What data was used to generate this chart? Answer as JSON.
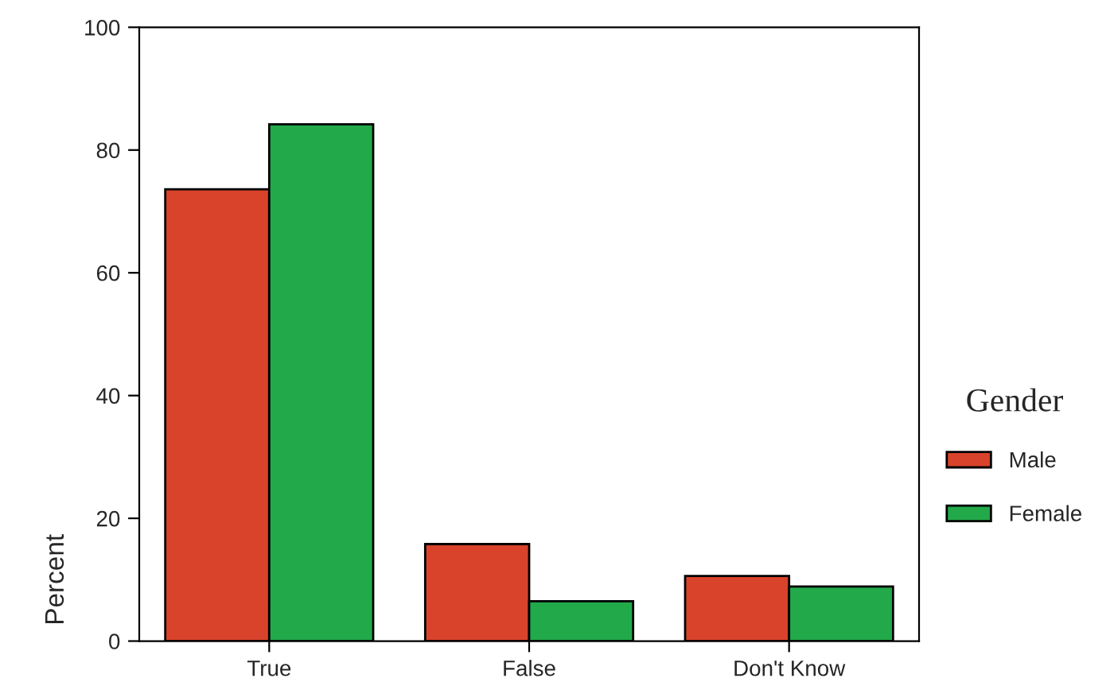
{
  "chart_data": {
    "type": "bar",
    "categories": [
      "True",
      "False",
      "Don't Know"
    ],
    "ylabel": "Percent",
    "legend_title": "Gender",
    "legend": "right",
    "ylim": [
      0,
      100
    ],
    "yticks": [
      0,
      20,
      40,
      60,
      80,
      100
    ],
    "grid": false,
    "series": [
      {
        "name": "Male",
        "color": "#d9432b",
        "values": [
          73.6,
          15.8,
          10.6
        ]
      },
      {
        "name": "Female",
        "color": "#22a94a",
        "values": [
          84.2,
          6.5,
          8.9
        ]
      }
    ]
  }
}
